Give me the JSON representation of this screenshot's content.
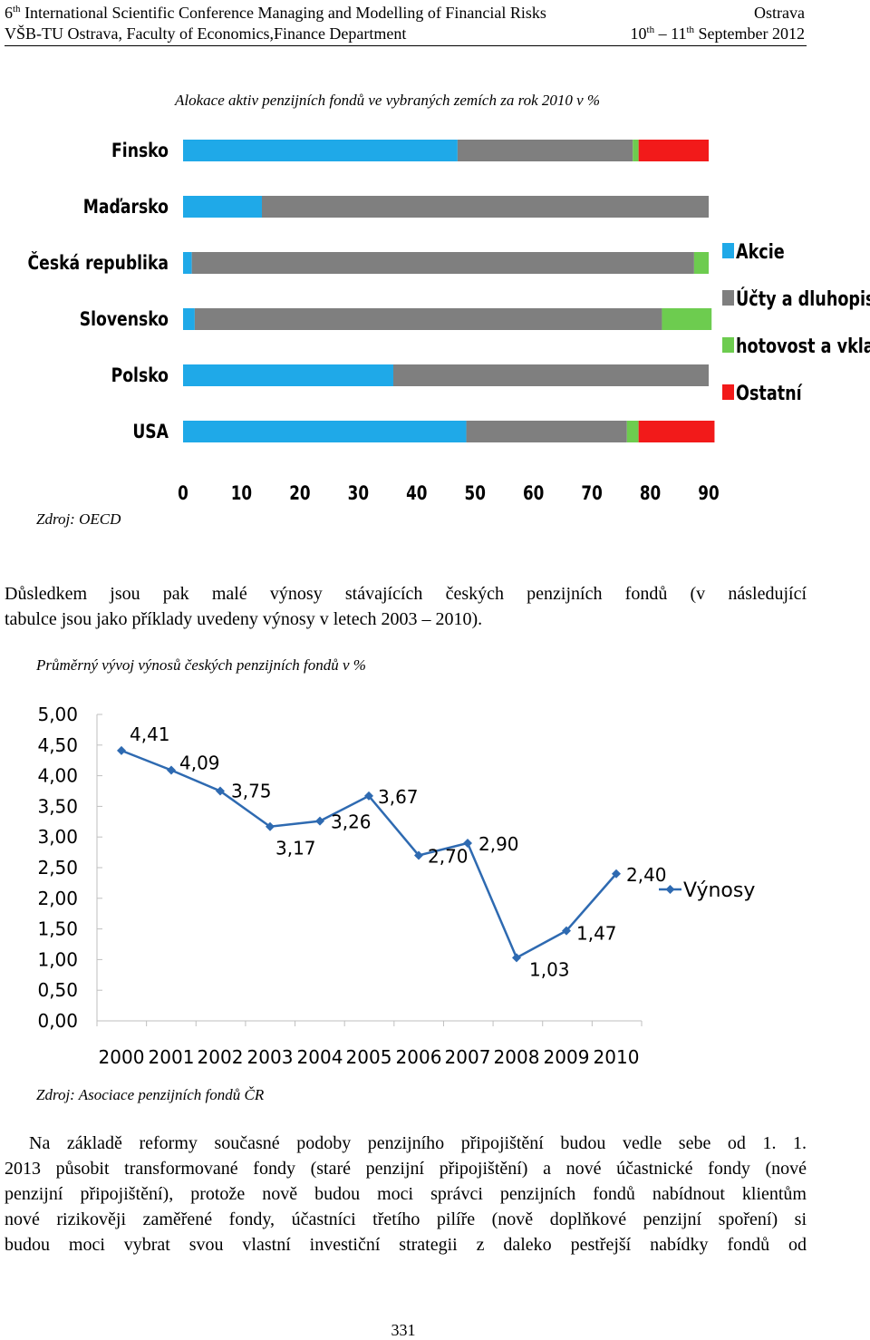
{
  "header": {
    "left_line1_num": "6",
    "left_line1_sup": "th",
    "left_line1_rest": " International Scientific Conference Managing and Modelling of Financial Risks",
    "right_line1": "Ostrava",
    "left_line2": "VŠB-TU Ostrava, Faculty of Economics,Finance Department",
    "right_line2_a": "10",
    "right_line2_sup1": "th",
    "right_line2_b": " – 11",
    "right_line2_sup2": "th",
    "right_line2_c": " September 2012"
  },
  "figure1": {
    "caption": "Alokace aktiv penzijních fondů ve vybraných zemích za rok 2010 v %",
    "source": "Zdroj: OECD"
  },
  "paragraph1": {
    "line1": "Důsledkem jsou pak malé výnosy stávajících českých penzijních fondů (v následující",
    "line2": "tabulce jsou jako příklady uvedeny výnosy v letech 2003 – 2010)."
  },
  "figure2": {
    "caption": "Průměrný vývoj výnosů českých penzijních fondů v %",
    "source": "Zdroj: Asociace penzijních fondů ČR"
  },
  "paragraph2": {
    "lines": [
      "Na základě reformy současné podoby penzijního připojištění budou vedle sebe od 1. 1.",
      "2013 působit transformované fondy (staré penzijní připojištění) a nové účastnické fondy (nové",
      "penzijní připojištění), protože nově budou moci správci penzijních fondů nabídnout klientům",
      "nové rizikověji zaměřené fondy, účastníci třetího pilíře (nově doplňkové penzijní spoření) si",
      "budou moci vybrat svou vlastní investiční strategii z daleko pestřejší nabídky fondů od"
    ]
  },
  "page_number": "331",
  "chart_data": [
    {
      "type": "bar",
      "stacked": true,
      "orientation": "horizontal",
      "categories": [
        "Finsko",
        "Maďarsko",
        "Česká republika",
        "Slovensko",
        "Polsko",
        "USA"
      ],
      "series": [
        {
          "name": "Akcie",
          "color": "#1fa9e8",
          "values": [
            47,
            13.5,
            1.5,
            2,
            36,
            48.5
          ]
        },
        {
          "name": "Účty a dluhopisy",
          "color": "#7f7f7f",
          "values": [
            30,
            76.5,
            86,
            80,
            54,
            27.5
          ]
        },
        {
          "name": "hotovost a vklady",
          "color": "#6dcc4f",
          "values": [
            1,
            0,
            2.5,
            8.5,
            0,
            2
          ]
        },
        {
          "name": "Ostatní",
          "color": "#f21a1a",
          "values": [
            12,
            0,
            0,
            0,
            0,
            13
          ]
        }
      ],
      "xlim": [
        0,
        90
      ],
      "xticks": [
        "0",
        "10",
        "20",
        "30",
        "40",
        "50",
        "60",
        "70",
        "80",
        "90"
      ],
      "legend": "right",
      "grid": false
    },
    {
      "type": "line",
      "x": [
        "2000",
        "2001",
        "2002",
        "2003",
        "2004",
        "2005",
        "2006",
        "2007",
        "2008",
        "2009",
        "2010"
      ],
      "series": [
        {
          "name": "Výnosy",
          "color": "#2e6ab1",
          "values": [
            4.41,
            4.09,
            3.75,
            3.17,
            3.26,
            3.67,
            2.7,
            2.9,
            1.03,
            1.47,
            2.4
          ],
          "labels": [
            "4,41",
            "4,09",
            "3,75",
            "3,17",
            "3,26",
            "3,67",
            "2,70",
            "2,90",
            "1,03",
            "1,47",
            "2,40"
          ]
        }
      ],
      "ylim": [
        0,
        5
      ],
      "yticks": [
        "0,00",
        "0,50",
        "1,00",
        "1,50",
        "2,00",
        "2,50",
        "3,00",
        "3,50",
        "4,00",
        "4,50",
        "5,00"
      ],
      "legend": "right",
      "grid": false
    }
  ]
}
